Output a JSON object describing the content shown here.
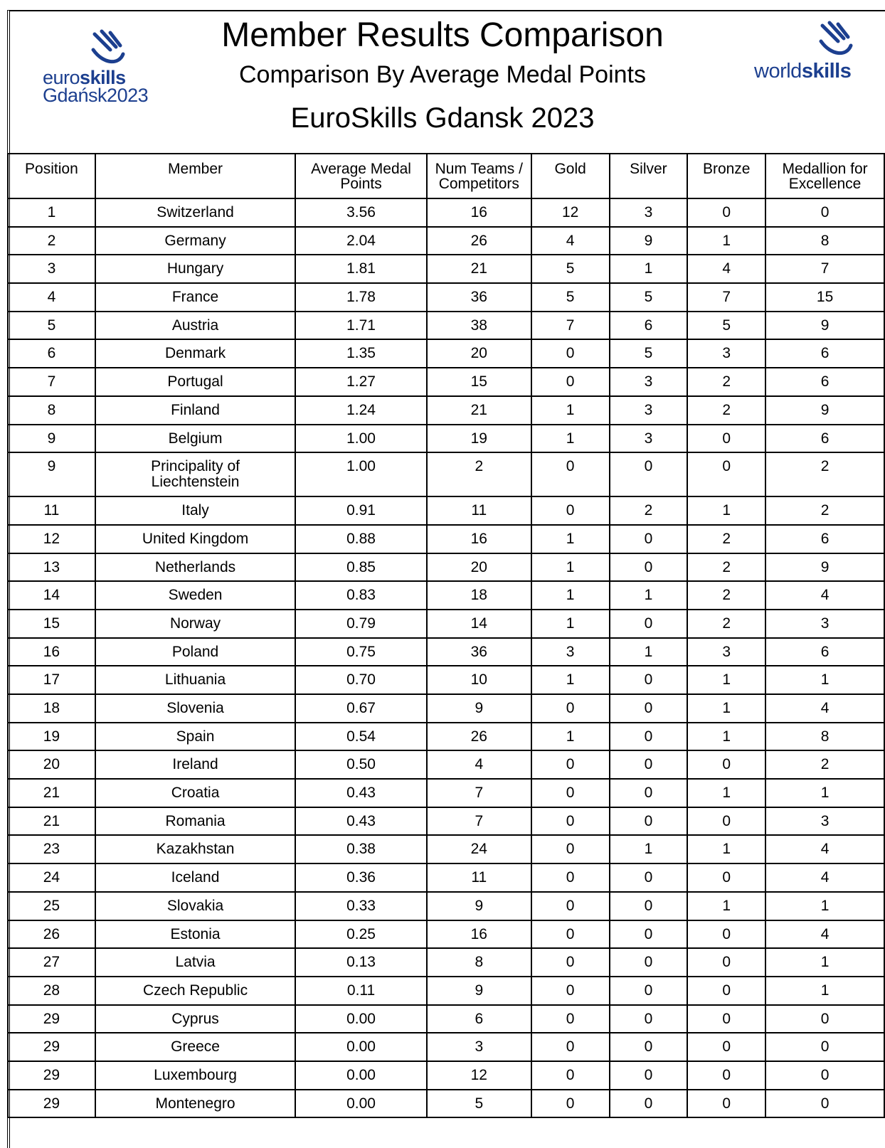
{
  "header": {
    "title": "Member Results Comparison",
    "subtitle": "Comparison By Average Medal Points",
    "event": "EuroSkills Gdansk 2023",
    "left_logo": {
      "part1": "euro",
      "part2": "skills",
      "line2": "Gdańsk2023"
    },
    "right_logo": {
      "part1": "world",
      "part2": "skills"
    }
  },
  "table": {
    "columns": [
      "Position",
      "Member",
      "Average Medal\nPoints",
      "Num Teams /\nCompetitors",
      "Gold",
      "Silver",
      "Bronze",
      "Medallion for\nExcellence"
    ],
    "rows": [
      [
        "1",
        "Switzerland",
        "3.56",
        "16",
        "12",
        "3",
        "0",
        "0"
      ],
      [
        "2",
        "Germany",
        "2.04",
        "26",
        "4",
        "9",
        "1",
        "8"
      ],
      [
        "3",
        "Hungary",
        "1.81",
        "21",
        "5",
        "1",
        "4",
        "7"
      ],
      [
        "4",
        "France",
        "1.78",
        "36",
        "5",
        "5",
        "7",
        "15"
      ],
      [
        "5",
        "Austria",
        "1.71",
        "38",
        "7",
        "6",
        "5",
        "9"
      ],
      [
        "6",
        "Denmark",
        "1.35",
        "20",
        "0",
        "5",
        "3",
        "6"
      ],
      [
        "7",
        "Portugal",
        "1.27",
        "15",
        "0",
        "3",
        "2",
        "6"
      ],
      [
        "8",
        "Finland",
        "1.24",
        "21",
        "1",
        "3",
        "2",
        "9"
      ],
      [
        "9",
        "Belgium",
        "1.00",
        "19",
        "1",
        "3",
        "0",
        "6"
      ],
      [
        "9",
        "Principality of\nLiechtenstein",
        "1.00",
        "2",
        "0",
        "0",
        "0",
        "2"
      ],
      [
        "11",
        "Italy",
        "0.91",
        "11",
        "0",
        "2",
        "1",
        "2"
      ],
      [
        "12",
        "United Kingdom",
        "0.88",
        "16",
        "1",
        "0",
        "2",
        "6"
      ],
      [
        "13",
        "Netherlands",
        "0.85",
        "20",
        "1",
        "0",
        "2",
        "9"
      ],
      [
        "14",
        "Sweden",
        "0.83",
        "18",
        "1",
        "1",
        "2",
        "4"
      ],
      [
        "15",
        "Norway",
        "0.79",
        "14",
        "1",
        "0",
        "2",
        "3"
      ],
      [
        "16",
        "Poland",
        "0.75",
        "36",
        "3",
        "1",
        "3",
        "6"
      ],
      [
        "17",
        "Lithuania",
        "0.70",
        "10",
        "1",
        "0",
        "1",
        "1"
      ],
      [
        "18",
        "Slovenia",
        "0.67",
        "9",
        "0",
        "0",
        "1",
        "4"
      ],
      [
        "19",
        "Spain",
        "0.54",
        "26",
        "1",
        "0",
        "1",
        "8"
      ],
      [
        "20",
        "Ireland",
        "0.50",
        "4",
        "0",
        "0",
        "0",
        "2"
      ],
      [
        "21",
        "Croatia",
        "0.43",
        "7",
        "0",
        "0",
        "1",
        "1"
      ],
      [
        "21",
        "Romania",
        "0.43",
        "7",
        "0",
        "0",
        "0",
        "3"
      ],
      [
        "23",
        "Kazakhstan",
        "0.38",
        "24",
        "0",
        "1",
        "1",
        "4"
      ],
      [
        "24",
        "Iceland",
        "0.36",
        "11",
        "0",
        "0",
        "0",
        "4"
      ],
      [
        "25",
        "Slovakia",
        "0.33",
        "9",
        "0",
        "0",
        "1",
        "1"
      ],
      [
        "26",
        "Estonia",
        "0.25",
        "16",
        "0",
        "0",
        "0",
        "4"
      ],
      [
        "27",
        "Latvia",
        "0.13",
        "8",
        "0",
        "0",
        "0",
        "1"
      ],
      [
        "28",
        "Czech Republic",
        "0.11",
        "9",
        "0",
        "0",
        "0",
        "1"
      ],
      [
        "29",
        "Cyprus",
        "0.00",
        "6",
        "0",
        "0",
        "0",
        "0"
      ],
      [
        "29",
        "Greece",
        "0.00",
        "3",
        "0",
        "0",
        "0",
        "0"
      ],
      [
        "29",
        "Luxembourg",
        "0.00",
        "12",
        "0",
        "0",
        "0",
        "0"
      ],
      [
        "29",
        "Montenegro",
        "0.00",
        "5",
        "0",
        "0",
        "0",
        "0"
      ]
    ]
  }
}
